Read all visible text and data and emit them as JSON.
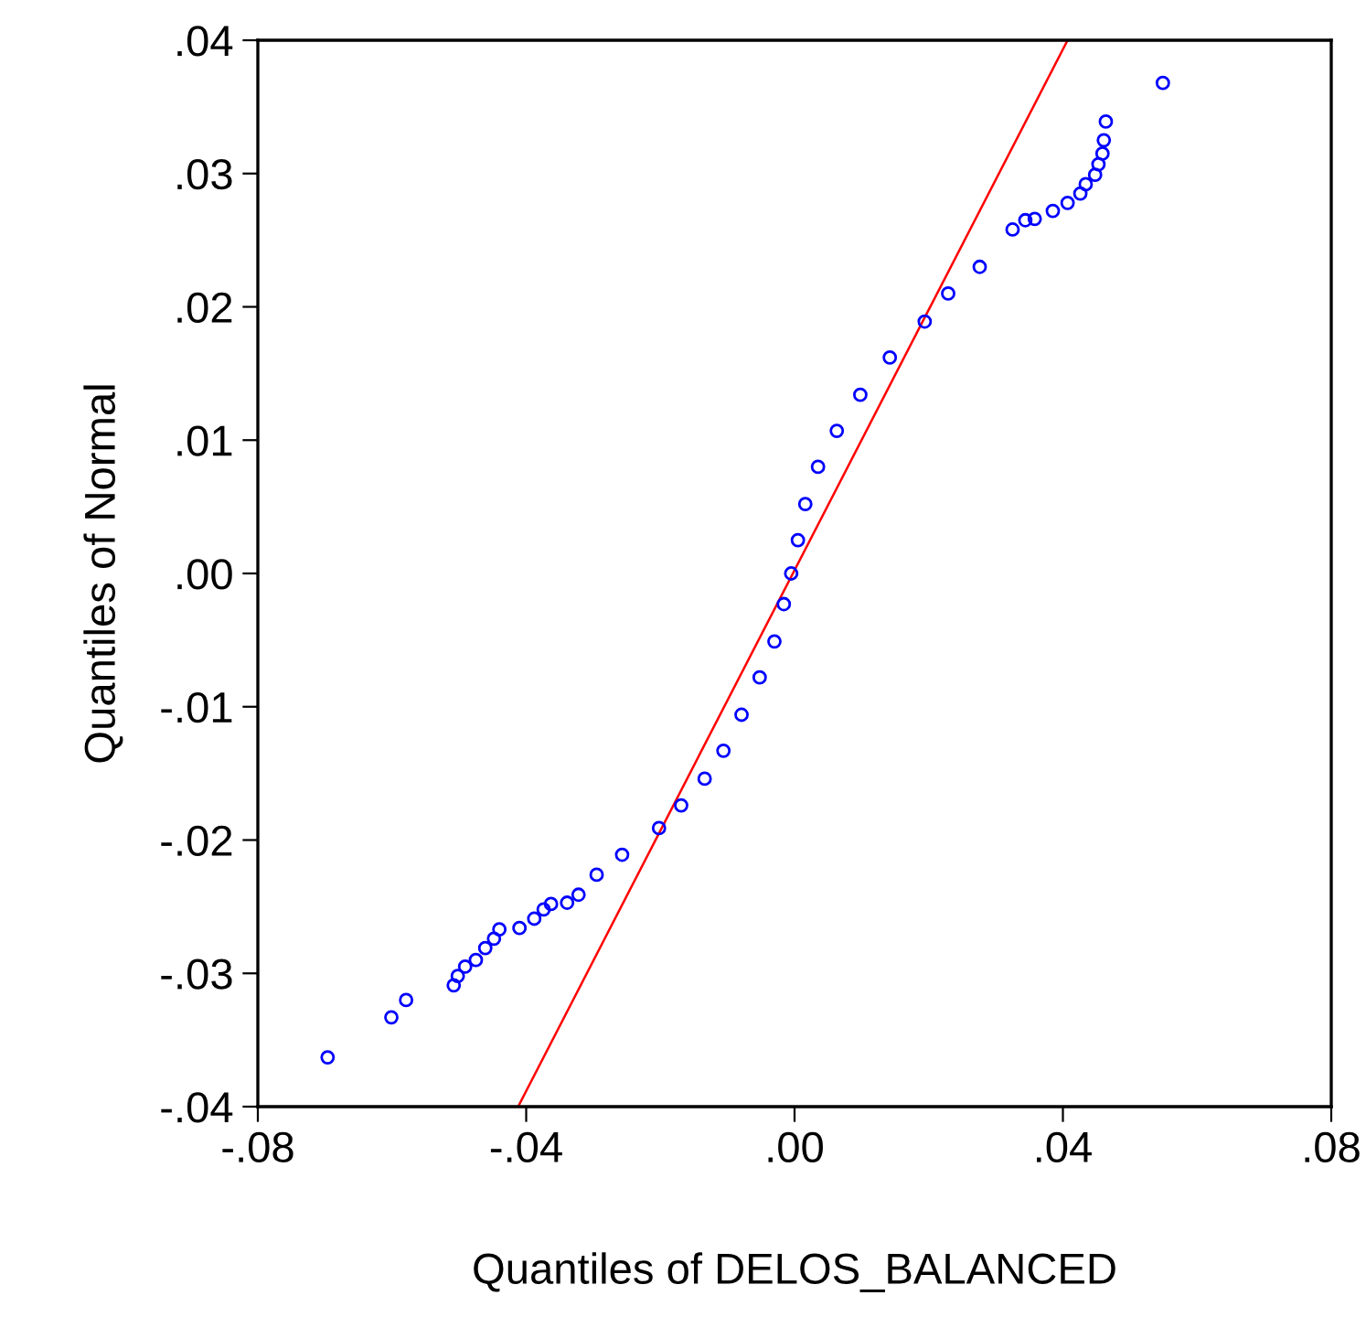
{
  "chart_data": {
    "type": "scatter",
    "xlabel": "Quantiles of DELOS_BALANCED",
    "ylabel": "Quantiles of Normal",
    "xlim": [
      -0.08,
      0.08
    ],
    "xticks": [
      {
        "value": -0.08,
        "label": "-.08"
      },
      {
        "value": -0.04,
        "label": "-.04"
      },
      {
        "value": 0,
        "label": ".00"
      },
      {
        "value": 0.04,
        "label": ".04"
      },
      {
        "value": 0.08,
        "label": ".08"
      }
    ],
    "ylim": [
      -0.04,
      0.04
    ],
    "yticks": [
      {
        "value": -0.04,
        "label": "-.04"
      },
      {
        "value": -0.03,
        "label": "-.03"
      },
      {
        "value": -0.02,
        "label": "-.02"
      },
      {
        "value": -0.01,
        "label": "-.01"
      },
      {
        "value": 0,
        "label": ".00"
      },
      {
        "value": 0.01,
        "label": ".01"
      },
      {
        "value": 0.02,
        "label": ".02"
      },
      {
        "value": 0.03,
        "label": ".03"
      },
      {
        "value": 0.04,
        "label": ".04"
      }
    ],
    "grid": false,
    "series": [
      {
        "marker": "circle",
        "color": "#0000ff",
        "x": [
          -0.0696,
          -0.0601,
          -0.0579,
          -0.0508,
          -0.0502,
          -0.0491,
          -0.0475,
          -0.0461,
          -0.0448,
          -0.044,
          -0.041,
          -0.0388,
          -0.0374,
          -0.0363,
          -0.0339,
          -0.0322,
          -0.0295,
          -0.0257,
          -0.0202,
          -0.0169,
          -0.0134,
          -0.0106,
          -0.0079,
          -0.0052,
          -0.003,
          -0.0016,
          -0.0005,
          0.0005,
          0.0016,
          0.0035,
          0.0063,
          0.0098,
          0.0142,
          0.0194,
          0.0229,
          0.0276,
          0.0325,
          0.0344,
          0.0358,
          0.0385,
          0.0407,
          0.0426,
          0.0434,
          0.0448,
          0.0453,
          0.0459,
          0.0461,
          0.0464,
          0.0549
        ],
        "values": [
          -0.0363,
          -0.0333,
          -0.032,
          -0.0309,
          -0.0302,
          -0.0295,
          -0.029,
          -0.0281,
          -0.0274,
          -0.0267,
          -0.0266,
          -0.0259,
          -0.0252,
          -0.0248,
          -0.0247,
          -0.0241,
          -0.0226,
          -0.0211,
          -0.0191,
          -0.0174,
          -0.0154,
          -0.0133,
          -0.0106,
          -0.0078,
          -0.0051,
          -0.0023,
          0.0,
          0.0025,
          0.0052,
          0.008,
          0.0107,
          0.0134,
          0.0162,
          0.0189,
          0.021,
          0.023,
          0.0258,
          0.0265,
          0.0266,
          0.0272,
          0.0278,
          0.0285,
          0.0292,
          0.0299,
          0.0307,
          0.0315,
          0.0325,
          0.0339,
          0.0368
        ]
      },
      {
        "type": "line",
        "color": "#ff0000",
        "x": [
          -0.0412,
          0.0407
        ],
        "values": [
          -0.04,
          0.04
        ]
      }
    ]
  }
}
